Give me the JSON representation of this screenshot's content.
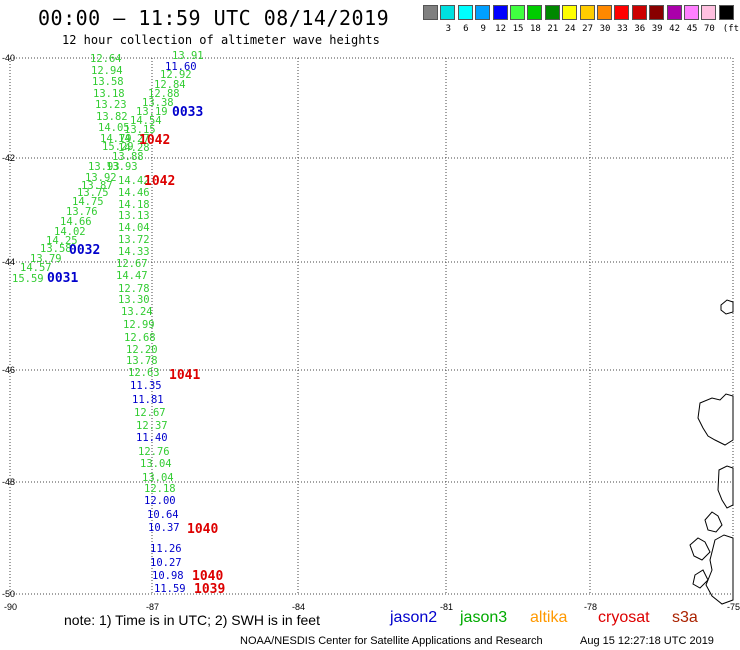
{
  "header": {
    "title": "00:00 – 11:59 UTC 08/14/2019",
    "subtitle": "12 hour collection of altimeter wave heights"
  },
  "legend": {
    "unit": "(ft)",
    "entries": [
      {
        "label": "",
        "color": "#808080"
      },
      {
        "label": "3",
        "color": "#00e0e0"
      },
      {
        "label": "6",
        "color": "#00ffff"
      },
      {
        "label": "9",
        "color": "#00a0ff"
      },
      {
        "label": "12",
        "color": "#0000ff"
      },
      {
        "label": "15",
        "color": "#40ff40"
      },
      {
        "label": "18",
        "color": "#00cc00"
      },
      {
        "label": "21",
        "color": "#008800"
      },
      {
        "label": "24",
        "color": "#ffff00"
      },
      {
        "label": "27",
        "color": "#ffcc00"
      },
      {
        "label": "30",
        "color": "#ff8800"
      },
      {
        "label": "33",
        "color": "#ff0000"
      },
      {
        "label": "36",
        "color": "#cc0000"
      },
      {
        "label": "39",
        "color": "#880000"
      },
      {
        "label": "42",
        "color": "#aa00aa"
      },
      {
        "label": "45",
        "color": "#ff80ff"
      },
      {
        "label": "70",
        "color": "#ffc0e0"
      },
      {
        "label": "",
        "color": "#000000"
      }
    ]
  },
  "map": {
    "lat_ticks": [
      "-40",
      "-42",
      "-44",
      "-46",
      "-48",
      "-50"
    ],
    "lon_ticks": [
      "-90",
      "-87",
      "-84",
      "-81",
      "-78",
      "-75"
    ],
    "lat_range": [
      -50,
      -40
    ],
    "lon_range": [
      -90,
      -75
    ]
  },
  "tracks": {
    "green": [
      "12.64",
      "12.94",
      "13.58",
      "13.18",
      "13.23",
      "13.82",
      "14.05",
      "14.79",
      "15.29",
      "13.93",
      "13.92",
      "13.87",
      "13.75",
      "14.75",
      "13.76",
      "14.66",
      "14.02",
      "14.25",
      "13.58",
      "13.79",
      "14.57",
      "15.59"
    ],
    "green_right": [
      "13.91",
      "12.92",
      "12.84",
      "12.88",
      "13.38",
      "13.19",
      "14.54",
      "13.15",
      "14.27",
      "14.28",
      "13.88",
      "13.93",
      "14.42",
      "14.46",
      "14.18",
      "13.13",
      "14.04",
      "13.72",
      "14.33",
      "12.67",
      "14.47",
      "12.78",
      "13.30",
      "13.24",
      "12.99",
      "12.68",
      "12.20",
      "13.78",
      "12.63"
    ],
    "blue_right": [
      "11.60",
      "11.35",
      "11.81"
    ],
    "green_lower": [
      "12.67",
      "12.37"
    ],
    "blue_lower1": [
      "11.40"
    ],
    "green_lower2": [
      "12.76",
      "13.04",
      "13.04",
      "12.18"
    ],
    "blue_lower2": [
      "12.00",
      "10.64",
      "10.37",
      "11.26",
      "10.27",
      "10.98",
      "11.59"
    ],
    "pass_labels": [
      {
        "text": "0033",
        "color": "#0000cc"
      },
      {
        "text": "1042",
        "color": "#dd0000"
      },
      {
        "text": "1042",
        "color": "#dd0000"
      },
      {
        "text": "0032",
        "color": "#0000cc"
      },
      {
        "text": "0031",
        "color": "#0000cc"
      },
      {
        "text": "1041",
        "color": "#dd0000"
      },
      {
        "text": "1040",
        "color": "#dd0000"
      },
      {
        "text": "1040",
        "color": "#dd0000"
      },
      {
        "text": "1039",
        "color": "#dd0000"
      }
    ]
  },
  "footer": {
    "note": "note:  1) Time is in UTC;  2) SWH is in feet",
    "satellites": [
      {
        "name": "jason2",
        "color": "#0000cc"
      },
      {
        "name": "jason3",
        "color": "#00aa00"
      },
      {
        "name": "altika",
        "color": "#ff9900"
      },
      {
        "name": "cryosat",
        "color": "#dd0000"
      },
      {
        "name": "s3a",
        "color": "#aa2200"
      }
    ],
    "credit": "NOAA/NESDIS Center for Satellite Applications and Research",
    "timestamp": "Aug 15 12:27:18 UTC 2019"
  }
}
